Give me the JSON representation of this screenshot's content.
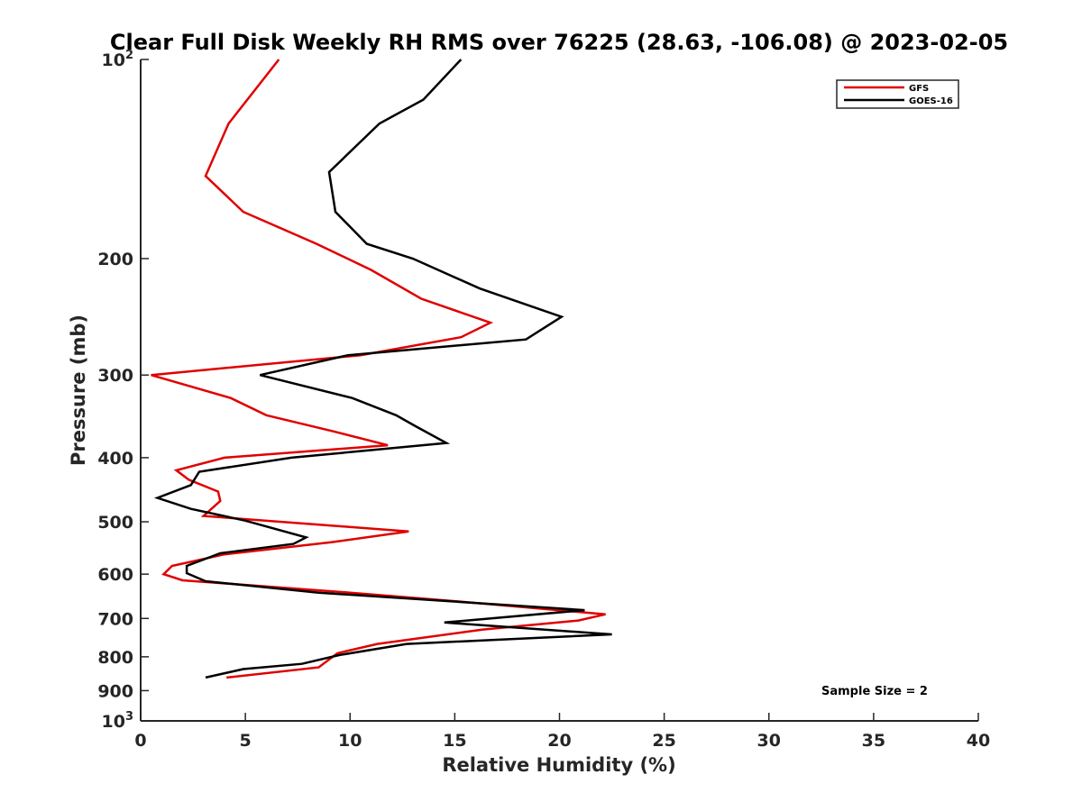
{
  "chart_data": {
    "type": "line",
    "title": "Clear Full Disk Weekly RH RMS over 76225 (28.63, -106.08) @ 2023-02-05",
    "xlabel": "Relative Humidity (%)",
    "ylabel": "Pressure (mb)",
    "xlim": [
      0,
      40
    ],
    "ylim": [
      1000,
      100
    ],
    "y_scale": "log",
    "y_reversed": true,
    "grid": false,
    "legend_position": "top-right",
    "x_ticks": [
      "0",
      "5",
      "10",
      "15",
      "20",
      "25",
      "30",
      "35",
      "40"
    ],
    "x_tick_values": [
      0,
      5,
      10,
      15,
      20,
      25,
      30,
      35,
      40
    ],
    "y_ticks": [
      {
        "value": 100,
        "base": "10",
        "exp": "2"
      },
      {
        "value": 200,
        "label": "200"
      },
      {
        "value": 300,
        "label": "300"
      },
      {
        "value": 400,
        "label": "400"
      },
      {
        "value": 500,
        "label": "500"
      },
      {
        "value": 600,
        "label": "600"
      },
      {
        "value": 700,
        "label": "700"
      },
      {
        "value": 800,
        "label": "800"
      },
      {
        "value": 900,
        "label": "900"
      },
      {
        "value": 1000,
        "base": "10",
        "exp": "3"
      }
    ],
    "series": [
      {
        "name": "GFS",
        "color": "#e00000",
        "points": [
          [
            6.6,
            100
          ],
          [
            4.2,
            125
          ],
          [
            3.1,
            150
          ],
          [
            4.9,
            170
          ],
          [
            8.4,
            190
          ],
          [
            11.0,
            208
          ],
          [
            13.4,
            230
          ],
          [
            16.7,
            250
          ],
          [
            15.3,
            263
          ],
          [
            10.5,
            280
          ],
          [
            0.5,
            300
          ],
          [
            4.3,
            325
          ],
          [
            6.0,
            345
          ],
          [
            9.2,
            365
          ],
          [
            11.8,
            383
          ],
          [
            4.0,
            400
          ],
          [
            1.7,
            418
          ],
          [
            2.3,
            432
          ],
          [
            3.7,
            450
          ],
          [
            3.8,
            465
          ],
          [
            3.0,
            490
          ],
          [
            12.8,
            517
          ],
          [
            9.1,
            537
          ],
          [
            4.0,
            560
          ],
          [
            1.5,
            583
          ],
          [
            1.1,
            600
          ],
          [
            2.0,
            613
          ],
          [
            10.0,
            640
          ],
          [
            15.2,
            660
          ],
          [
            22.2,
            690
          ],
          [
            20.9,
            705
          ],
          [
            16.3,
            728
          ],
          [
            11.3,
            765
          ],
          [
            9.4,
            790
          ],
          [
            8.5,
            830
          ],
          [
            4.1,
            860
          ]
        ]
      },
      {
        "name": "GOES-16",
        "color": "#000000",
        "points": [
          [
            15.3,
            100
          ],
          [
            13.5,
            115
          ],
          [
            11.4,
            125
          ],
          [
            9.0,
            148
          ],
          [
            9.3,
            170
          ],
          [
            10.8,
            190
          ],
          [
            13.0,
            200
          ],
          [
            16.2,
            222
          ],
          [
            20.1,
            245
          ],
          [
            18.4,
            265
          ],
          [
            9.9,
            280
          ],
          [
            5.7,
            300
          ],
          [
            10.1,
            325
          ],
          [
            12.2,
            345
          ],
          [
            13.1,
            358
          ],
          [
            14.6,
            380
          ],
          [
            7.2,
            400
          ],
          [
            2.8,
            420
          ],
          [
            2.4,
            440
          ],
          [
            0.8,
            460
          ],
          [
            2.4,
            478
          ],
          [
            5.0,
            498
          ],
          [
            7.9,
            528
          ],
          [
            7.3,
            540
          ],
          [
            3.8,
            558
          ],
          [
            2.2,
            583
          ],
          [
            2.2,
            598
          ],
          [
            3.1,
            615
          ],
          [
            8.5,
            640
          ],
          [
            21.2,
            680
          ],
          [
            14.5,
            710
          ],
          [
            22.5,
            740
          ],
          [
            12.7,
            765
          ],
          [
            9.5,
            795
          ],
          [
            7.7,
            820
          ],
          [
            4.9,
            835
          ],
          [
            3.1,
            860
          ]
        ]
      }
    ],
    "annotation": "Sample Size = 2"
  }
}
